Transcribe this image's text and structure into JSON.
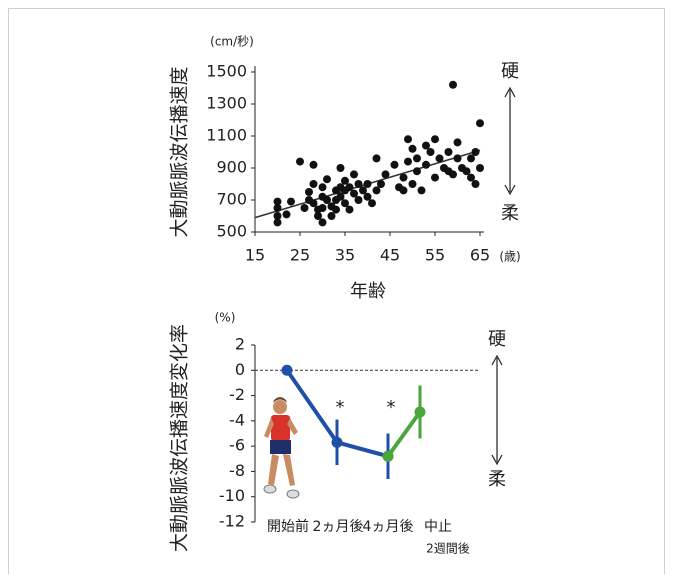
{
  "chart_data": [
    {
      "type": "scatter",
      "y_label": "大動脈脈波伝播速度",
      "y_unit": "(cm/秒)",
      "x_label": "年齢",
      "x_unit": "(歳)",
      "annotation_top": "硬",
      "annotation_bottom": "柔",
      "color": "#111111",
      "x": [
        20,
        20,
        20,
        20,
        22,
        23,
        25,
        26,
        27,
        27,
        28,
        28,
        28,
        29,
        29,
        30,
        30,
        30,
        30,
        31,
        31,
        32,
        32,
        33,
        33,
        33,
        34,
        34,
        34,
        35,
        35,
        35,
        36,
        36,
        37,
        37,
        38,
        38,
        39,
        40,
        40,
        41,
        42,
        42,
        43,
        44,
        46,
        47,
        48,
        48,
        49,
        49,
        50,
        50,
        51,
        51,
        52,
        53,
        53,
        54,
        55,
        55,
        56,
        57,
        58,
        58,
        59,
        59,
        60,
        60,
        61,
        62,
        63,
        63,
        64,
        64,
        65,
        65
      ],
      "values": [
        690,
        650,
        600,
        560,
        610,
        690,
        940,
        650,
        700,
        750,
        920,
        800,
        680,
        640,
        600,
        780,
        720,
        650,
        560,
        830,
        700,
        660,
        600,
        760,
        700,
        640,
        900,
        780,
        720,
        820,
        760,
        680,
        640,
        780,
        860,
        740,
        800,
        700,
        760,
        720,
        800,
        680,
        960,
        760,
        800,
        860,
        920,
        780,
        760,
        840,
        1080,
        940,
        800,
        1020,
        880,
        960,
        760,
        1040,
        920,
        1000,
        840,
        1080,
        960,
        900,
        880,
        1000,
        1420,
        860,
        960,
        1060,
        900,
        880,
        840,
        960,
        1000,
        800,
        1180,
        900
      ],
      "trend_line": {
        "x": [
          15,
          65
        ],
        "values": [
          590,
          1010
        ],
        "color": "#333333"
      },
      "xlim": [
        15,
        65
      ],
      "ylim": [
        500,
        1500
      ],
      "xticks": [
        15,
        25,
        35,
        45,
        55,
        65
      ],
      "yticks": [
        500,
        700,
        900,
        1100,
        1300,
        1500
      ]
    },
    {
      "type": "line",
      "y_label": "大動脈脈波伝播速度変化率",
      "y_unit": "(%)",
      "annotation_top": "硬",
      "annotation_bottom": "柔",
      "categories": [
        "開始前",
        "2ヵ月後",
        "4ヵ月後",
        "中止"
      ],
      "category_sublabels": [
        null,
        null,
        null,
        "2週間後"
      ],
      "series": [
        {
          "color": "#1f4fa8",
          "values": [
            0,
            -5.7,
            -6.8,
            null
          ],
          "errors": [
            null,
            1.8,
            1.8,
            null
          ]
        },
        {
          "color": "#4aa63a",
          "values": [
            null,
            null,
            -6.8,
            -3.3
          ],
          "errors": [
            null,
            null,
            null,
            2.1
          ]
        }
      ],
      "significance": [
        null,
        "*",
        "*",
        null
      ],
      "reference_line": 0,
      "ylim": [
        -12,
        2
      ],
      "yticks": [
        2,
        0,
        -2,
        -4,
        -6,
        -8,
        -10,
        -12
      ]
    }
  ]
}
